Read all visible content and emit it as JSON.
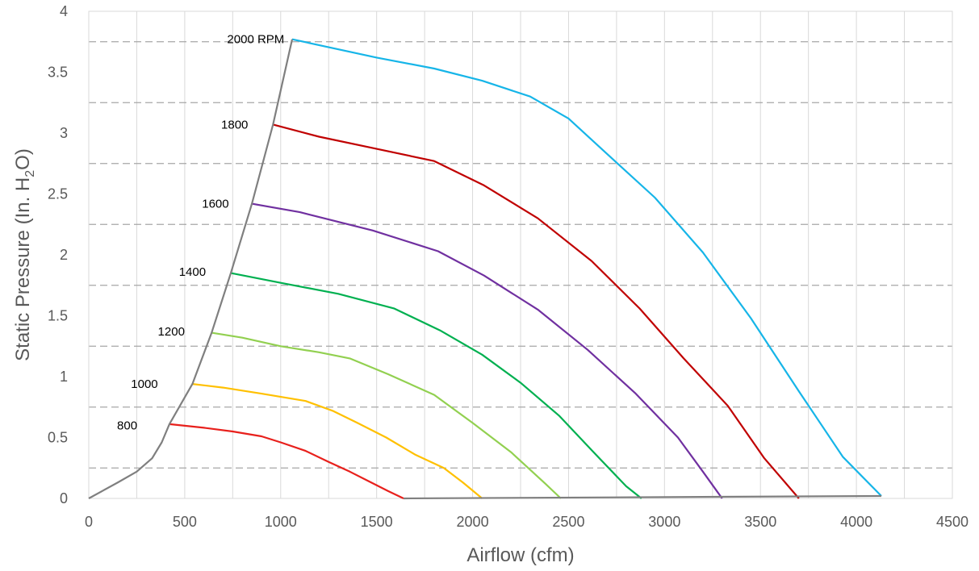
{
  "chart_data": {
    "type": "line",
    "xlabel": "Airflow (cfm)",
    "ylabel_prefix": "Static Pressure (In. H",
    "ylabel_sub": "2",
    "ylabel_suffix": "O)",
    "xlim": [
      0,
      4500
    ],
    "ylim": [
      0,
      4
    ],
    "x_ticks": [
      "0",
      "500",
      "1000",
      "1500",
      "2000",
      "2500",
      "3000",
      "3500",
      "4000",
      "4500"
    ],
    "y_ticks": [
      "0",
      "0.5",
      "1",
      "1.5",
      "2",
      "2.5",
      "3",
      "3.5",
      "4"
    ],
    "vertical_grid": "solid light gray every 250 cfm",
    "horizontal_dashed_y": [
      0.25,
      0.75,
      1.25,
      1.75,
      2.25,
      2.75,
      3.25,
      3.75
    ],
    "series": [
      {
        "name": "800",
        "color": "#e8201c",
        "label_at": [
          200,
          0.6
        ],
        "points": [
          [
            420,
            0.61
          ],
          [
            600,
            0.58
          ],
          [
            750,
            0.55
          ],
          [
            900,
            0.51
          ],
          [
            1000,
            0.46
          ],
          [
            1130,
            0.39
          ],
          [
            1250,
            0.3
          ],
          [
            1360,
            0.22
          ],
          [
            1460,
            0.14
          ],
          [
            1560,
            0.06
          ],
          [
            1640,
            0.0
          ]
        ]
      },
      {
        "name": "1000",
        "color": "#ffc000",
        "label_at": [
          290,
          0.94
        ],
        "points": [
          [
            540,
            0.94
          ],
          [
            700,
            0.91
          ],
          [
            900,
            0.86
          ],
          [
            1130,
            0.8
          ],
          [
            1270,
            0.72
          ],
          [
            1400,
            0.62
          ],
          [
            1550,
            0.5
          ],
          [
            1700,
            0.36
          ],
          [
            1850,
            0.25
          ],
          [
            1950,
            0.13
          ],
          [
            2050,
            0.0
          ]
        ]
      },
      {
        "name": "1200",
        "color": "#92d050",
        "label_at": [
          430,
          1.37
        ],
        "points": [
          [
            640,
            1.36
          ],
          [
            800,
            1.32
          ],
          [
            1000,
            1.25
          ],
          [
            1200,
            1.2
          ],
          [
            1360,
            1.15
          ],
          [
            1560,
            1.02
          ],
          [
            1800,
            0.85
          ],
          [
            2000,
            0.62
          ],
          [
            2200,
            0.38
          ],
          [
            2380,
            0.12
          ],
          [
            2460,
            0.0
          ]
        ]
      },
      {
        "name": "1400",
        "color": "#00b050",
        "label_at": [
          540,
          1.86
        ],
        "points": [
          [
            740,
            1.85
          ],
          [
            1000,
            1.77
          ],
          [
            1300,
            1.68
          ],
          [
            1590,
            1.56
          ],
          [
            1830,
            1.38
          ],
          [
            2050,
            1.18
          ],
          [
            2250,
            0.95
          ],
          [
            2450,
            0.68
          ],
          [
            2630,
            0.38
          ],
          [
            2800,
            0.1
          ],
          [
            2880,
            0.0
          ]
        ]
      },
      {
        "name": "1600",
        "color": "#7030a0",
        "label_at": [
          660,
          2.42
        ],
        "points": [
          [
            850,
            2.42
          ],
          [
            1100,
            2.35
          ],
          [
            1480,
            2.2
          ],
          [
            1820,
            2.03
          ],
          [
            2060,
            1.83
          ],
          [
            2340,
            1.55
          ],
          [
            2600,
            1.22
          ],
          [
            2850,
            0.86
          ],
          [
            3070,
            0.5
          ],
          [
            3200,
            0.22
          ],
          [
            3300,
            0.0
          ]
        ]
      },
      {
        "name": "1800",
        "color": "#c00000",
        "label_at": [
          760,
          3.07
        ],
        "points": [
          [
            960,
            3.07
          ],
          [
            1200,
            2.97
          ],
          [
            1500,
            2.87
          ],
          [
            1800,
            2.77
          ],
          [
            2060,
            2.57
          ],
          [
            2340,
            2.3
          ],
          [
            2620,
            1.95
          ],
          [
            2870,
            1.56
          ],
          [
            3100,
            1.15
          ],
          [
            3330,
            0.76
          ],
          [
            3520,
            0.33
          ],
          [
            3700,
            0.0
          ]
        ]
      },
      {
        "name": "2000 RPM",
        "color": "#16b5e8",
        "label_at": [
          870,
          3.77
        ],
        "points": [
          [
            1060,
            3.77
          ],
          [
            1500,
            3.62
          ],
          [
            1800,
            3.53
          ],
          [
            2050,
            3.43
          ],
          [
            2300,
            3.3
          ],
          [
            2500,
            3.12
          ],
          [
            2700,
            2.83
          ],
          [
            2950,
            2.47
          ],
          [
            3200,
            2.02
          ],
          [
            3450,
            1.48
          ],
          [
            3700,
            0.88
          ],
          [
            3930,
            0.34
          ],
          [
            4130,
            0.02
          ]
        ]
      }
    ],
    "boundary": {
      "color": "#7f7f7f",
      "points": [
        [
          0,
          0
        ],
        [
          150,
          0.13
        ],
        [
          250,
          0.22
        ],
        [
          330,
          0.33
        ],
        [
          380,
          0.46
        ],
        [
          420,
          0.61
        ],
        [
          540,
          0.94
        ],
        [
          640,
          1.36
        ],
        [
          740,
          1.85
        ],
        [
          850,
          2.42
        ],
        [
          960,
          3.07
        ],
        [
          1060,
          3.77
        ]
      ]
    },
    "baseline": {
      "color": "#7f7f7f",
      "points": [
        [
          1640,
          0.0
        ],
        [
          4130,
          0.02
        ]
      ]
    }
  }
}
